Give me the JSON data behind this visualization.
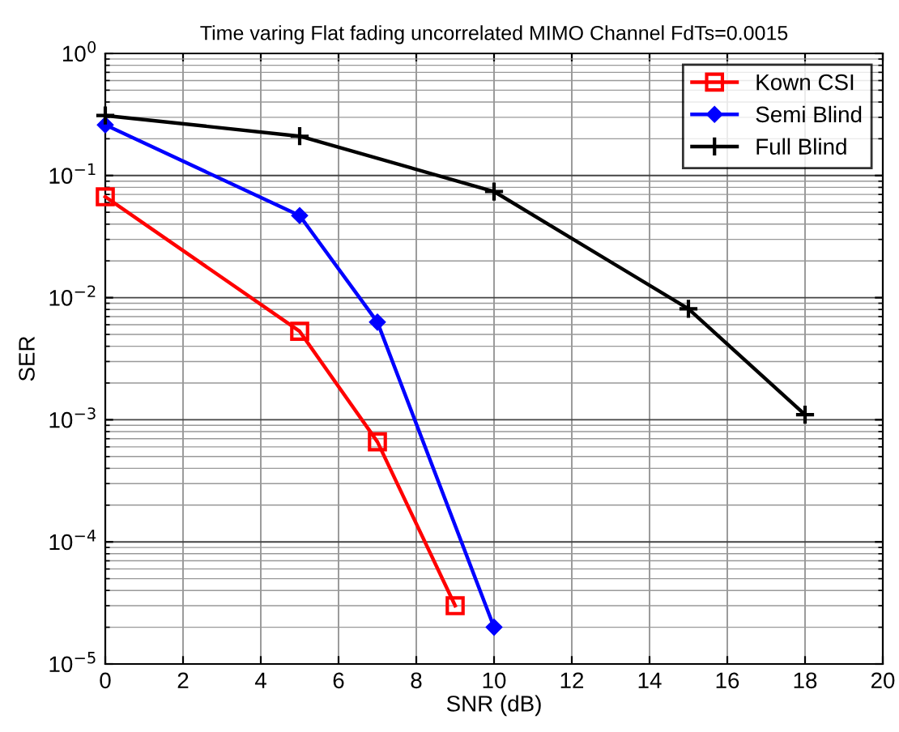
{
  "chart_data": {
    "type": "line",
    "title": "Time varing Flat fading uncorrelated MIMO Channel FdTs=0.0015",
    "xlabel": "SNR (dB)",
    "ylabel": "SER",
    "log": "y",
    "grid": true,
    "legend": "top right",
    "line_style": "solid",
    "xlim": [
      0,
      20
    ],
    "xticks": [
      0,
      2,
      4,
      6,
      8,
      10,
      12,
      14,
      16,
      18,
      20
    ],
    "ylim": [
      1e-05,
      1
    ],
    "yticks": [
      {
        "value": 1e-05,
        "label": "10$^{−5}$"
      },
      {
        "value": 0.0001,
        "label": "10$^{−4}$"
      },
      {
        "value": 0.001,
        "label": "10$^{−3}$"
      },
      {
        "value": 0.01,
        "label": "10$^{−2}$"
      },
      {
        "value": 0.1,
        "label": "10$^{−1}$"
      },
      {
        "value": 1,
        "label": "10$^{0}$"
      }
    ],
    "series": [
      {
        "name": "Kown CSI",
        "color": "#ff0000",
        "marker": "square",
        "x": [
          0,
          5,
          7,
          9
        ],
        "values": [
          0.067,
          0.0053,
          0.00066,
          3e-05
        ]
      },
      {
        "name": "Semi Blind",
        "color": "#0000ff",
        "marker": "diamond",
        "x": [
          0,
          5,
          7,
          10
        ],
        "values": [
          0.26,
          0.047,
          0.0063,
          2e-05
        ]
      },
      {
        "name": "Full Blind",
        "color": "#000000",
        "marker": "cross",
        "x": [
          0,
          5,
          10,
          15,
          18
        ],
        "values": [
          0.31,
          0.21,
          0.074,
          0.0081,
          0.0011
        ]
      }
    ]
  }
}
